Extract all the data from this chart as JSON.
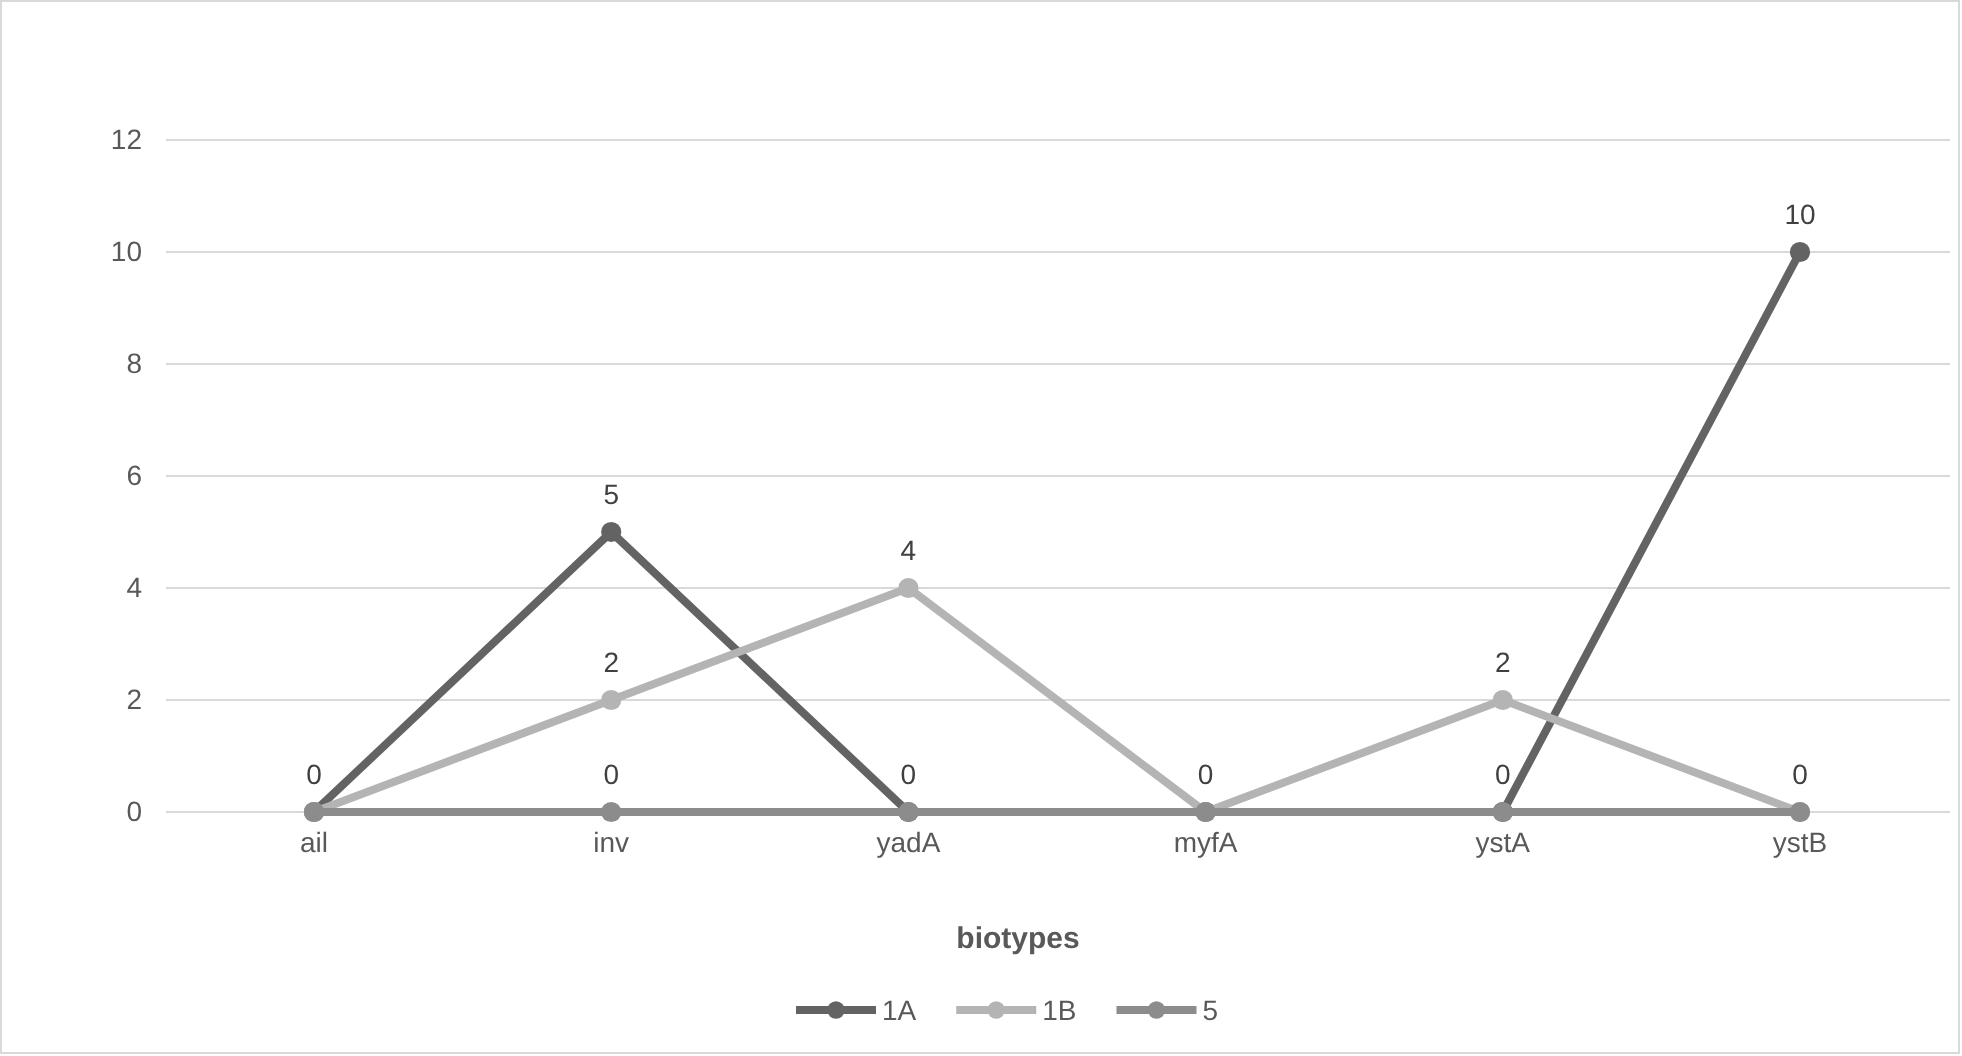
{
  "chart_data": {
    "type": "line",
    "xlabel": "biotypes",
    "categories": [
      "ail",
      "inv",
      "yadA",
      "myfA",
      "ystA",
      "ystB"
    ],
    "series": [
      {
        "name": "1A",
        "color": "#636363",
        "values": [
          0,
          5,
          0,
          0,
          0,
          10
        ],
        "value_labels": [
          "0",
          "5",
          "0",
          "0",
          "0",
          "10"
        ]
      },
      {
        "name": "1B",
        "color": "#b4b4b4",
        "values": [
          0,
          2,
          4,
          0,
          2,
          0
        ],
        "value_labels": [
          null,
          "2",
          "4",
          null,
          "2",
          null
        ]
      },
      {
        "name": "5",
        "color": "#8c8c8c",
        "values": [
          0,
          0,
          0,
          0,
          0,
          0
        ],
        "value_labels": [
          null,
          "0",
          null,
          null,
          null,
          "0"
        ]
      }
    ],
    "ylim": [
      0,
      12
    ],
    "yticks": [
      0,
      2,
      4,
      6,
      8,
      10,
      12
    ],
    "grid": "y",
    "legend": "bottom",
    "marker": "circle",
    "line_style": "solid"
  }
}
